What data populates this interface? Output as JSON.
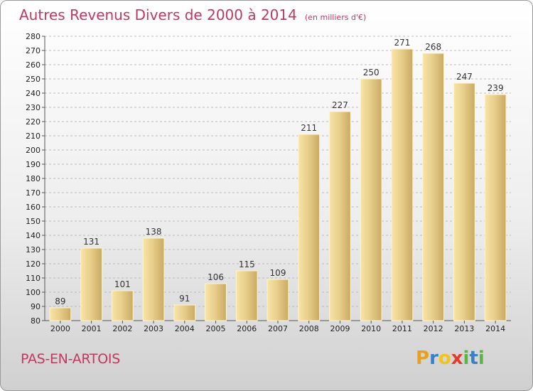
{
  "title": "Autres Revenus Divers de 2000 à 2014",
  "subtitle": "(en milliers d'€)",
  "location": "PAS-EN-ARTOIS",
  "logo": {
    "letters": [
      "P",
      "r",
      "o",
      "x",
      "i",
      "t",
      "i"
    ],
    "colors": [
      "#e8a020",
      "#3a7fc7",
      "#f0c419",
      "#e13c2c",
      "#5bb543",
      "#3a7fc7",
      "#5bb543"
    ]
  },
  "colors": {
    "bar": "#e8cf8c",
    "bar_light": "#f7e4a6",
    "bar_dark": "#c9aa63",
    "accent": "#c0395f",
    "grid": "#bbbbbb"
  },
  "chart_data": {
    "type": "bar",
    "categories": [
      "2000",
      "2001",
      "2002",
      "2003",
      "2004",
      "2005",
      "2006",
      "2007",
      "2008",
      "2009",
      "2010",
      "2011",
      "2012",
      "2013",
      "2014"
    ],
    "values": [
      89,
      131,
      101,
      138,
      91,
      106,
      115,
      109,
      211,
      227,
      250,
      271,
      268,
      247,
      239
    ],
    "ylim": [
      80,
      280
    ],
    "ytick_step": 10,
    "grid": true,
    "xlabel": "",
    "ylabel": ""
  }
}
